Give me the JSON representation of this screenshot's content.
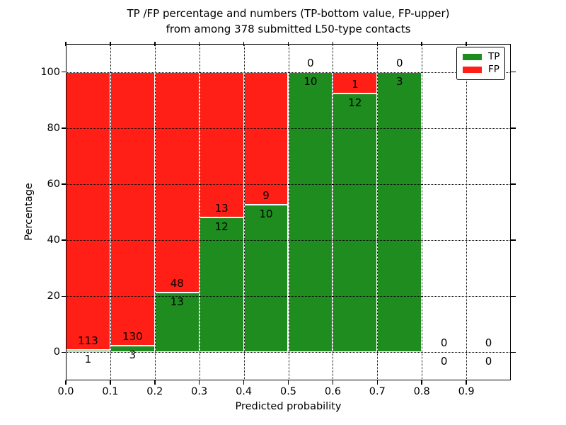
{
  "chart_data": {
    "type": "bar",
    "stacked": true,
    "orientation": "vertical",
    "title_line1": "TP /FP percentage and numbers (TP-bottom value, FP-upper)",
    "title_line2": "from among 378 submitted L50-type contacts",
    "xlabel": "Predicted probability",
    "ylabel": "Percentage",
    "total_contacts": 378,
    "xlim": [
      0.0,
      1.0
    ],
    "ylim": [
      -10,
      110
    ],
    "x_tick_values": [
      0.0,
      0.1,
      0.2,
      0.3,
      0.4,
      0.5,
      0.6,
      0.7,
      0.8,
      0.9
    ],
    "x_tick_labels": [
      "0.0",
      "0.1",
      "0.2",
      "0.3",
      "0.4",
      "0.5",
      "0.6",
      "0.7",
      "0.8",
      "0.9"
    ],
    "y_tick_values": [
      0,
      20,
      40,
      60,
      80,
      100
    ],
    "y_tick_labels": [
      "0",
      "20",
      "40",
      "60",
      "80",
      "100"
    ],
    "grid": {
      "style": "dotted",
      "color": "#000000",
      "drawn_over_bars": true
    },
    "bin_width": 0.1,
    "bin_starts": [
      0.0,
      0.1,
      0.2,
      0.3,
      0.4,
      0.5,
      0.6,
      0.7,
      0.8,
      0.9
    ],
    "categories": [
      "0.0-0.1",
      "0.1-0.2",
      "0.2-0.3",
      "0.3-0.4",
      "0.4-0.5",
      "0.5-0.6",
      "0.6-0.7",
      "0.7-0.8",
      "0.8-0.9",
      "0.9-1.0"
    ],
    "series": [
      {
        "name": "TP",
        "color": "#1f8c1f",
        "counts": [
          1,
          3,
          13,
          12,
          10,
          10,
          12,
          3,
          0,
          0
        ]
      },
      {
        "name": "FP",
        "color": "#ff1f16",
        "counts": [
          113,
          130,
          48,
          13,
          9,
          0,
          1,
          0,
          0,
          0
        ]
      }
    ],
    "tp_percent": [
      0.88,
      2.26,
      21.31,
      48.0,
      52.63,
      100.0,
      92.31,
      100.0,
      0,
      0
    ],
    "bar_edge_color": "#ffffff",
    "legend": {
      "position": "upper-right",
      "entries": [
        {
          "label": "TP",
          "color": "#1f8c1f"
        },
        {
          "label": "FP",
          "color": "#ff1f16"
        }
      ]
    }
  }
}
